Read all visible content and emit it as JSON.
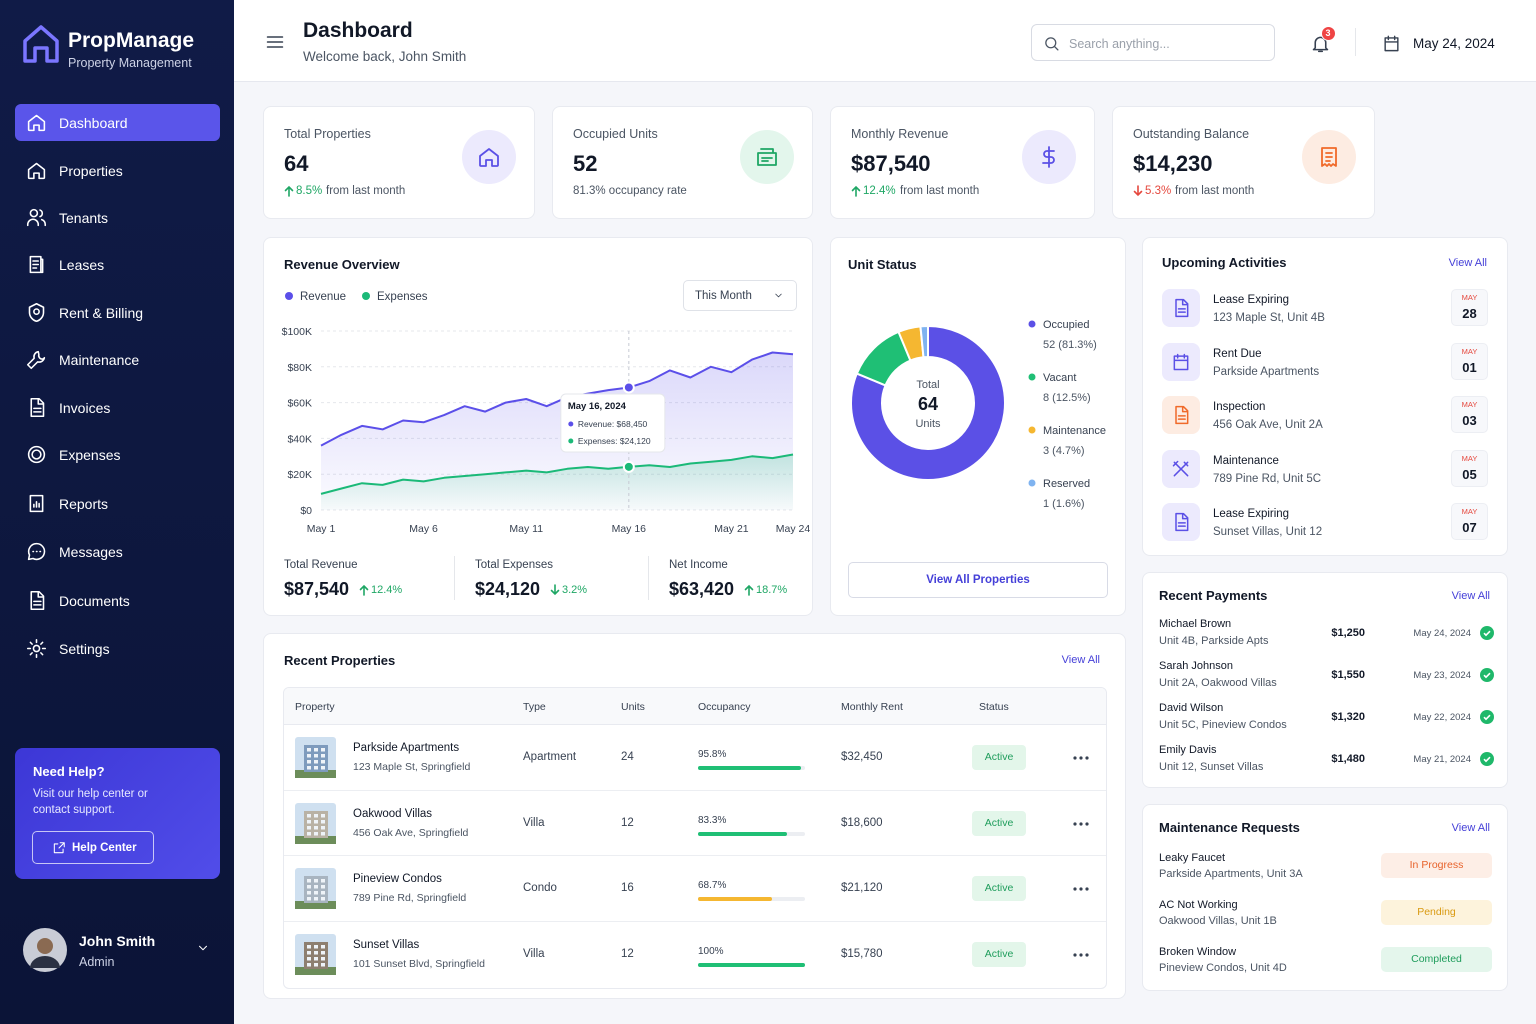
{
  "sidebar": {
    "brand": "PropManage",
    "tagline": "Property Management",
    "nav": [
      "Dashboard",
      "Properties",
      "Tenants",
      "Leases",
      "Rent & Billing",
      "Maintenance",
      "Invoices",
      "Expenses",
      "Reports",
      "Messages",
      "Documents",
      "Settings"
    ],
    "active": 0,
    "help": {
      "title": "Need Help?",
      "text": "Visit our help center or contact support.",
      "button": "Help Center"
    },
    "user": {
      "name": "John Smith",
      "role": "Admin"
    }
  },
  "header": {
    "title": "Dashboard",
    "subtitle": "Welcome back, John Smith",
    "search_placeholder": "Search anything...",
    "notifications": "3",
    "date": "May 24, 2024"
  },
  "kpis": [
    {
      "label": "Total Properties",
      "value": "64",
      "change": "8.5%",
      "note": "from last month",
      "trend": "up"
    },
    {
      "label": "Occupied Units",
      "value": "52",
      "note": "81.3% occupancy rate"
    },
    {
      "label": "Monthly Revenue",
      "value": "$87,540",
      "change": "12.4%",
      "note": "from last month",
      "trend": "up"
    },
    {
      "label": "Outstanding Balance",
      "value": "$14,230",
      "change": "5.3%",
      "note": "from last month",
      "trend": "down"
    }
  ],
  "revenue_overview": {
    "title": "Revenue Overview",
    "period": "This Month",
    "chart_data": {
      "type": "line",
      "categories": [
        "May 1",
        null,
        null,
        null,
        null,
        "May 6",
        null,
        null,
        null,
        null,
        "May 11",
        null,
        null,
        null,
        null,
        "May 16",
        null,
        null,
        null,
        null,
        "May 21",
        null,
        null,
        "May 24"
      ],
      "series": [
        {
          "name": "Revenue",
          "color": "#5b4fe9",
          "values": [
            36000,
            42000,
            47000,
            45000,
            50000,
            49000,
            53000,
            58000,
            55000,
            60000,
            62000,
            58000,
            63000,
            65000,
            67000,
            68450,
            72000,
            78000,
            74000,
            80000,
            77000,
            84000,
            88000,
            87000
          ]
        },
        {
          "name": "Expenses",
          "color": "#1bb978",
          "values": [
            9000,
            12000,
            15000,
            14000,
            17000,
            16000,
            18000,
            19000,
            20000,
            21000,
            22000,
            21000,
            23000,
            24000,
            23000,
            24120,
            25000,
            24000,
            26000,
            27000,
            28000,
            30000,
            29000,
            31000
          ]
        }
      ],
      "ylim": [
        0,
        100000
      ],
      "yticks": [
        {
          "value": 0,
          "label": "$0"
        },
        {
          "value": 20000,
          "label": "$20K"
        },
        {
          "value": 40000,
          "label": "$40K"
        },
        {
          "value": 60000,
          "label": "$60K"
        },
        {
          "value": 80000,
          "label": "$80K"
        },
        {
          "value": 100000,
          "label": "$100K"
        }
      ],
      "grid": true,
      "tooltip": {
        "title": "May 16, 2024",
        "lines": [
          "Revenue: $68,450",
          "Expenses: $24,120"
        ]
      }
    },
    "summary": [
      {
        "label": "Total Revenue",
        "value": "$87,540",
        "change": "12.4%",
        "trend": "up"
      },
      {
        "label": "Total Expenses",
        "value": "$24,120",
        "change": "3.2%",
        "trend": "down"
      },
      {
        "label": "Net Income",
        "value": "$63,420",
        "change": "18.7%",
        "trend": "up"
      }
    ]
  },
  "unit_status": {
    "title": "Unit Status",
    "chart_data": {
      "type": "donut",
      "categories": [
        "Occupied",
        "Vacant",
        "Maintenance",
        "Reserved"
      ],
      "values": [
        52,
        8,
        3,
        1
      ],
      "value_labels": [
        "52 (81.3%)",
        "8 (12.5%)",
        "3 (4.7%)",
        "1 (1.6%)"
      ],
      "colors": [
        "#5b50e6",
        "#1fbf75",
        "#f5b731",
        "#7fb3f0"
      ],
      "center": {
        "label": "Total",
        "value": "64",
        "unit": "Units"
      }
    },
    "button": "View All Properties"
  },
  "upcoming_activities": {
    "title": "Upcoming Activities",
    "link": "View All",
    "items": [
      {
        "title": "Lease Expiring",
        "subtitle": "123 Maple St, Unit 4B",
        "month": "MAY",
        "day": "28"
      },
      {
        "title": "Rent Due",
        "subtitle": "Parkside Apartments",
        "month": "MAY",
        "day": "01"
      },
      {
        "title": "Inspection",
        "subtitle": "456 Oak Ave, Unit 2A",
        "month": "MAY",
        "day": "03"
      },
      {
        "title": "Maintenance",
        "subtitle": "789 Pine Rd, Unit 5C",
        "month": "MAY",
        "day": "05"
      },
      {
        "title": "Lease Expiring",
        "subtitle": "Sunset Villas, Unit 12",
        "month": "MAY",
        "day": "07"
      }
    ]
  },
  "recent_payments": {
    "title": "Recent Payments",
    "link": "View All",
    "items": [
      {
        "name": "Michael Brown",
        "unit": "Unit 4B, Parkside Apts",
        "amount": "$1,250",
        "date": "May 24, 2024"
      },
      {
        "name": "Sarah Johnson",
        "unit": "Unit 2A, Oakwood Villas",
        "amount": "$1,550",
        "date": "May 23, 2024"
      },
      {
        "name": "David Wilson",
        "unit": "Unit 5C, Pineview Condos",
        "amount": "$1,320",
        "date": "May 22, 2024"
      },
      {
        "name": "Emily Davis",
        "unit": "Unit 12, Sunset Villas",
        "amount": "$1,480",
        "date": "May 21, 2024"
      }
    ]
  },
  "maintenance_requests": {
    "title": "Maintenance Requests",
    "link": "View All",
    "items": [
      {
        "title": "Leaky Faucet",
        "location": "Parkside Apartments, Unit 3A",
        "status": "In Progress"
      },
      {
        "title": "AC Not Working",
        "location": "Oakwood Villas, Unit 1B",
        "status": "Pending"
      },
      {
        "title": "Broken Window",
        "location": "Pineview Condos, Unit 4D",
        "status": "Completed"
      }
    ]
  },
  "recent_properties": {
    "title": "Recent Properties",
    "link": "View All",
    "columns": [
      "Property",
      "Type",
      "Units",
      "Occupancy",
      "Monthly Rent",
      "Status"
    ],
    "rows": [
      {
        "name": "Parkside Apartments",
        "address": "123 Maple St, Springfield",
        "type": "Apartment",
        "units": "24",
        "occupancy": {
          "value": 95.8,
          "label": "95.8%",
          "color": "#1fbf75"
        },
        "rent": "$32,450",
        "status": "Active"
      },
      {
        "name": "Oakwood Villas",
        "address": "456 Oak Ave, Springfield",
        "type": "Villa",
        "units": "12",
        "occupancy": {
          "value": 83.3,
          "label": "83.3%",
          "color": "#1fbf75"
        },
        "rent": "$18,600",
        "status": "Active"
      },
      {
        "name": "Pineview Condos",
        "address": "789 Pine Rd, Springfield",
        "type": "Condo",
        "units": "16",
        "occupancy": {
          "value": 68.7,
          "label": "68.7%",
          "color": "#f5b731"
        },
        "rent": "$21,120",
        "status": "Active"
      },
      {
        "name": "Sunset Villas",
        "address": "101 Sunset Blvd, Springfield",
        "type": "Villa",
        "units": "12",
        "occupancy": {
          "value": 100,
          "label": "100%",
          "color": "#1fbf75"
        },
        "rent": "$15,780",
        "status": "Active"
      }
    ]
  }
}
